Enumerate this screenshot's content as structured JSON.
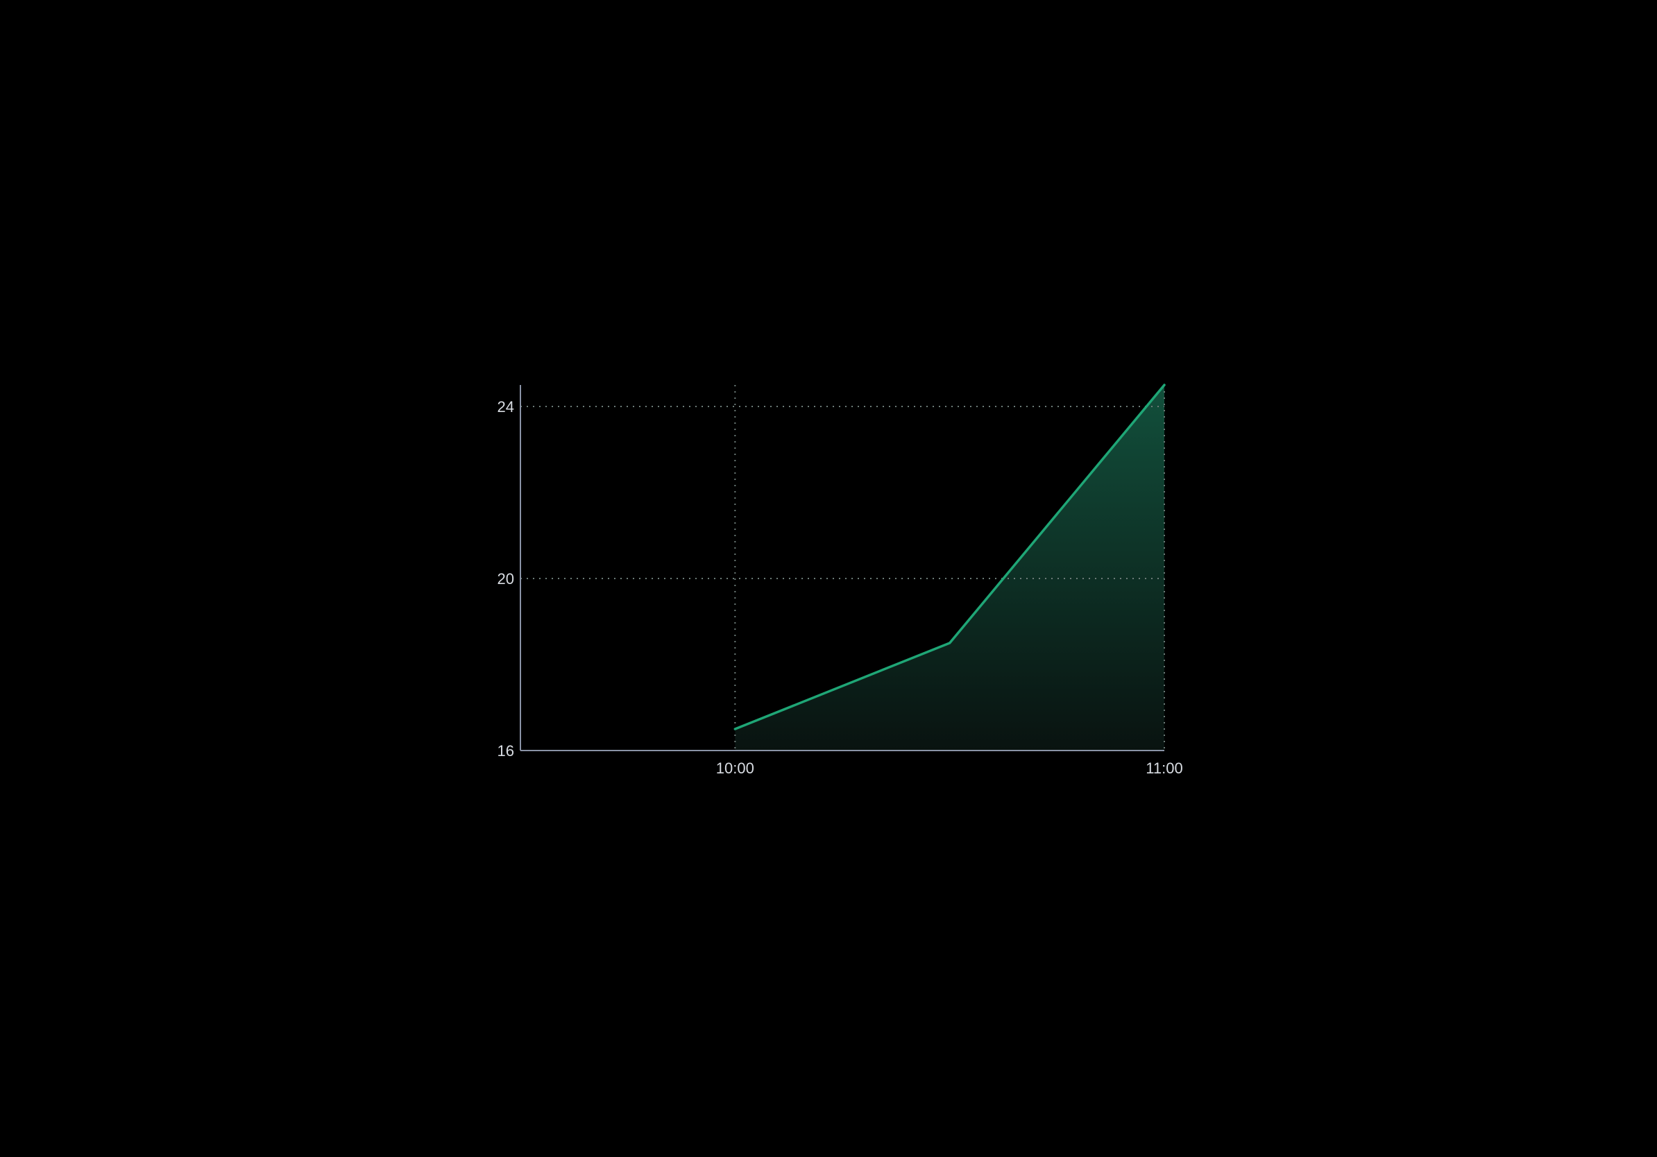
{
  "chart_data": {
    "type": "area",
    "x": [
      "10:00",
      "10:30",
      "11:00"
    ],
    "series": [
      {
        "values": [
          16.5,
          18.5,
          24.5
        ]
      }
    ],
    "x_ticks": [
      "10:00",
      "11:00"
    ],
    "y_ticks": [
      "16",
      "20",
      "24"
    ],
    "xlim": [
      "09:30",
      "11:00"
    ],
    "ylim": [
      16,
      24.5
    ],
    "grid": true,
    "title": "",
    "xlabel": "",
    "ylabel": "",
    "colors": {
      "line": "#1fa676",
      "fill_top": "#13543f",
      "axis": "#8a93a6",
      "grid": "#6c7b78"
    }
  }
}
